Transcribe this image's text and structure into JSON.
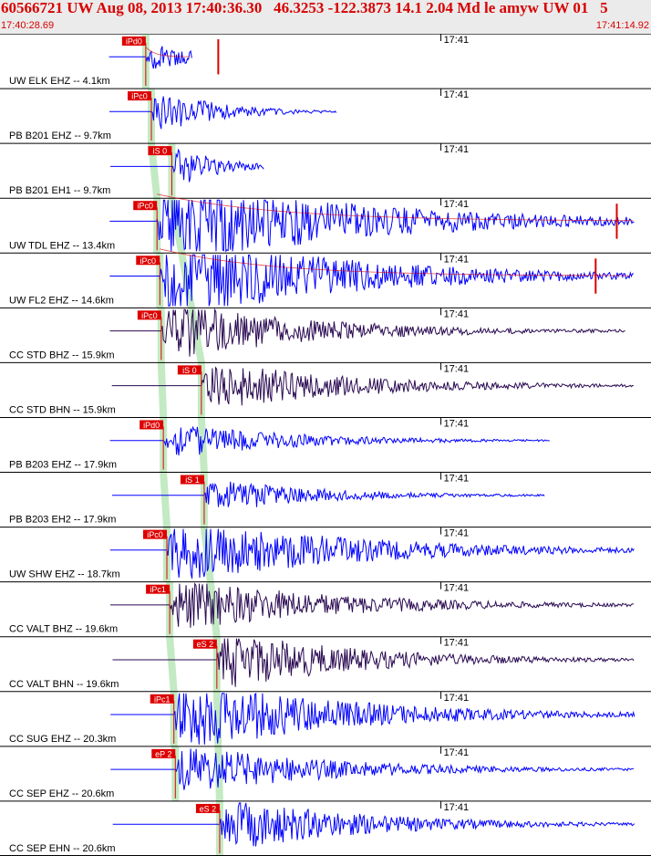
{
  "header": {
    "title": "60566721 UW Aug 08, 2013 17:40:36.30   46.3253 -122.3873 14.1 2.04 Md le amyw UW 01   5",
    "start_time": "17:40:28.69",
    "end_time": "17:41:14.92"
  },
  "colors": {
    "trace_blue": "#0000ff",
    "trace_dark": "#2a0a52",
    "pick_red": "#dd0000",
    "pick_band_green": "#b8e6b8",
    "header_text": "#d80000",
    "header_bg": "#ebebeb"
  },
  "chart_data": {
    "type": "seismogram",
    "time_window": {
      "start": "17:40:28.69",
      "end": "17:41:14.92",
      "duration_s": 46.23
    },
    "time_tick_label": "17:41",
    "time_tick_s": 31.31,
    "origin_time_s": 7.61,
    "traces": [
      {
        "label": "UW ELK EHZ -- 4.1km",
        "pick_label": "iPd0",
        "pick_type": "P",
        "pick_s": 10.35,
        "color": "blue",
        "amplitude": 0.35,
        "duration_s": 3,
        "decay_tail": true,
        "spike_s": 15.5
      },
      {
        "label": "PB B201 EHZ -- 9.7km",
        "pick_label": "iPc0",
        "pick_type": "P",
        "pick_s": 10.75,
        "color": "blue",
        "amplitude": 0.55,
        "duration_s": 12
      },
      {
        "label": "PB B201 EH1 -- 9.7km",
        "pick_label": "iS 0",
        "pick_type": "S",
        "pick_s": 12.2,
        "color": "blue",
        "amplitude": 0.5,
        "duration_s": 6
      },
      {
        "label": "UW TDL EHZ -- 13.4km",
        "pick_label": "iPc0",
        "pick_type": "P",
        "pick_s": 11.15,
        "color": "blue",
        "amplitude": 1.0,
        "duration_s": 40,
        "decay_tail": true,
        "spike_s": 43.8
      },
      {
        "label": "UW FL2 EHZ -- 14.6km",
        "pick_label": "iPc0",
        "pick_type": "P",
        "pick_s": 11.35,
        "color": "blue",
        "amplitude": 1.0,
        "duration_s": 36,
        "decay_tail": true,
        "spike_s": 42.3
      },
      {
        "label": "CC STD BHZ -- 15.9km",
        "pick_label": "iPc0",
        "pick_type": "P",
        "pick_s": 11.45,
        "color": "dark",
        "amplitude": 0.65,
        "duration_s": 30
      },
      {
        "label": "CC STD BHN -- 15.9km",
        "pick_label": "iS 0",
        "pick_type": "S",
        "pick_s": 14.3,
        "color": "dark",
        "amplitude": 0.55,
        "duration_s": 30
      },
      {
        "label": "PB B203 EHZ -- 17.9km",
        "pick_label": "iPd0",
        "pick_type": "P",
        "pick_s": 11.6,
        "color": "blue",
        "amplitude": 0.4,
        "duration_s": 25
      },
      {
        "label": "PB B203 EH2 -- 17.9km",
        "pick_label": "iS 1",
        "pick_type": "S",
        "pick_s": 14.5,
        "color": "blue",
        "amplitude": 0.4,
        "duration_s": 22
      },
      {
        "label": "UW SHW EHZ -- 18.7km",
        "pick_label": "iPc0",
        "pick_type": "P",
        "pick_s": 11.85,
        "color": "blue",
        "amplitude": 0.75,
        "duration_s": 35
      },
      {
        "label": "CC VALT BHZ -- 19.6km",
        "pick_label": "iPc1",
        "pick_type": "P",
        "pick_s": 12.05,
        "color": "dark",
        "amplitude": 0.6,
        "duration_s": 32
      },
      {
        "label": "CC VALT BHN -- 19.6km",
        "pick_label": "eS 2",
        "pick_type": "S",
        "pick_s": 15.4,
        "color": "dark",
        "amplitude": 0.65,
        "duration_s": 28
      },
      {
        "label": "CC SUG EHZ -- 20.3km",
        "pick_label": "iPc1",
        "pick_type": "P",
        "pick_s": 12.35,
        "color": "blue",
        "amplitude": 0.85,
        "duration_s": 32
      },
      {
        "label": "CC SEP EHZ -- 20.6km",
        "pick_label": "eP 2",
        "pick_type": "P",
        "pick_s": 12.45,
        "color": "blue",
        "amplitude": 0.55,
        "duration_s": 30
      },
      {
        "label": "CC SEP EHN -- 20.6km",
        "pick_label": "eS 2",
        "pick_type": "S",
        "pick_s": 15.6,
        "color": "blue",
        "amplitude": 0.6,
        "duration_s": 28
      }
    ]
  }
}
